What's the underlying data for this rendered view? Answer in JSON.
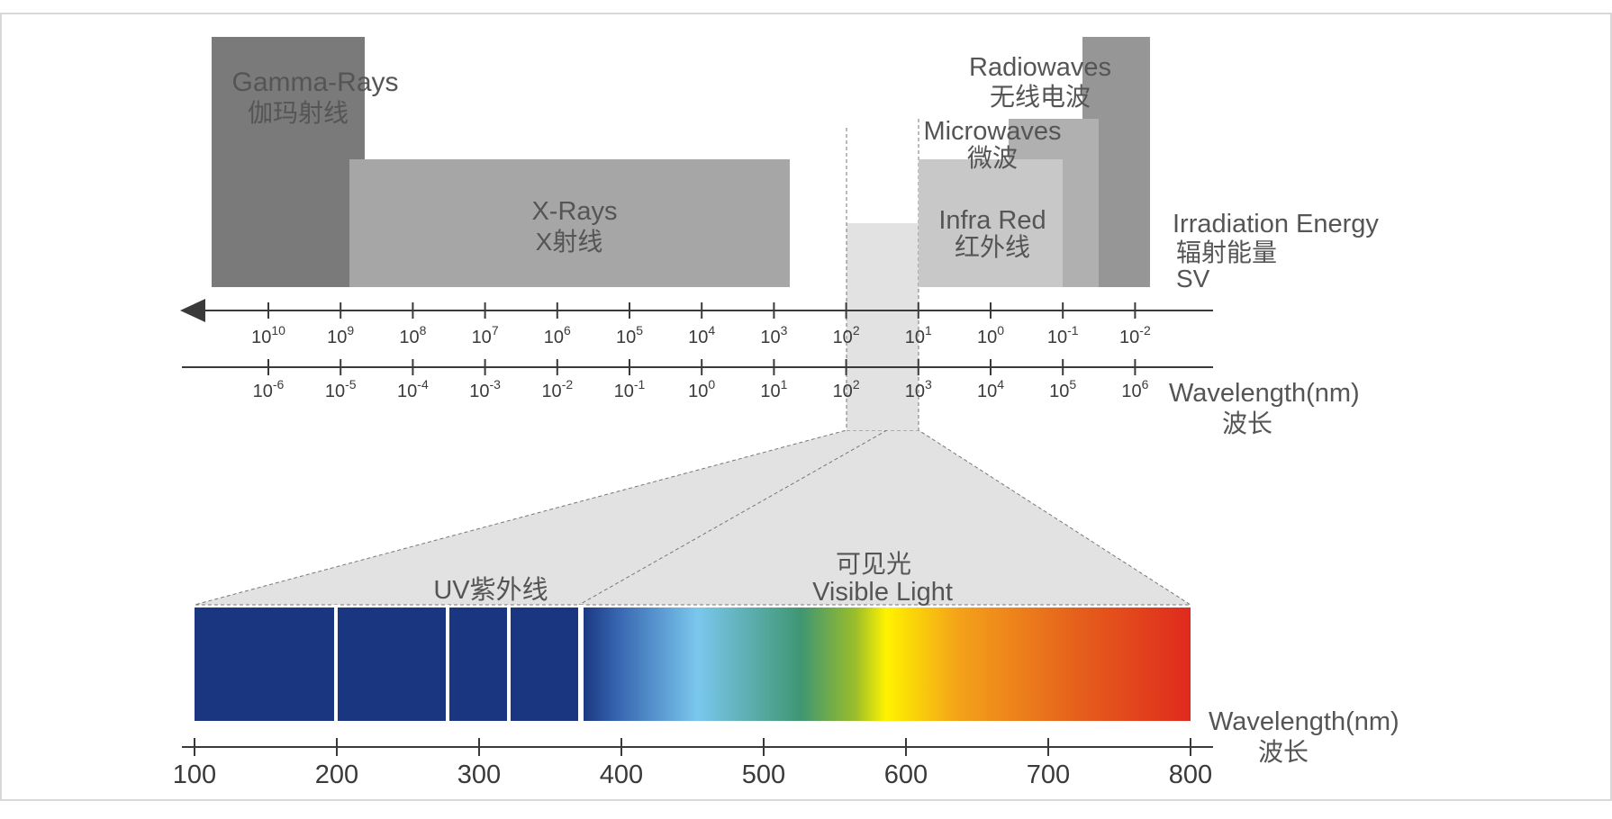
{
  "bands": {
    "gamma": {
      "en": "Gamma-Rays",
      "zh": "伽玛射线",
      "color": "#7a7a7a"
    },
    "xray": {
      "en": "X-Rays",
      "zh": "X射线",
      "color": "#a6a6a6"
    },
    "radio": {
      "en": "Radiowaves",
      "zh": "无线电波",
      "color": "#969696"
    },
    "micro": {
      "en": "Microwaves",
      "zh": "微波",
      "color": "#b0b0b0"
    },
    "infrared": {
      "en": "Infra Red",
      "zh": "红外线",
      "color": "#c8c8c8"
    },
    "optical_window_color": "#e2e2e2"
  },
  "energy_axis": {
    "label_en": "Irradiation Energy",
    "label_zh": "辐射能量",
    "unit": "SV",
    "ticks": [
      {
        "base": "10",
        "exp": "10"
      },
      {
        "base": "10",
        "exp": "9"
      },
      {
        "base": "10",
        "exp": "8"
      },
      {
        "base": "10",
        "exp": "7"
      },
      {
        "base": "10",
        "exp": "6"
      },
      {
        "base": "10",
        "exp": "5"
      },
      {
        "base": "10",
        "exp": "4"
      },
      {
        "base": "10",
        "exp": "3"
      },
      {
        "base": "10",
        "exp": "2"
      },
      {
        "base": "10",
        "exp": "1"
      },
      {
        "base": "10",
        "exp": "0"
      },
      {
        "base": "10",
        "exp": "-1"
      },
      {
        "base": "10",
        "exp": "-2"
      }
    ]
  },
  "wavelength_axis": {
    "label_en": "Wavelength(nm)",
    "label_zh": "波长",
    "ticks": [
      {
        "base": "10",
        "exp": "-6"
      },
      {
        "base": "10",
        "exp": "-5"
      },
      {
        "base": "10",
        "exp": "-4"
      },
      {
        "base": "10",
        "exp": "-3"
      },
      {
        "base": "10",
        "exp": "-2"
      },
      {
        "base": "10",
        "exp": "-1"
      },
      {
        "base": "10",
        "exp": "0"
      },
      {
        "base": "10",
        "exp": "1"
      },
      {
        "base": "10",
        "exp": "2"
      },
      {
        "base": "10",
        "exp": "3"
      },
      {
        "base": "10",
        "exp": "4"
      },
      {
        "base": "10",
        "exp": "5"
      },
      {
        "base": "10",
        "exp": "6"
      }
    ]
  },
  "zoom": {
    "uv_label": "UV紫外线",
    "visible_zh": "可见光",
    "visible_en": "Visible Light",
    "axis_label_en": "Wavelength(nm)",
    "axis_label_zh": "波长",
    "axis_ticks": [
      "100",
      "200",
      "300",
      "400",
      "500",
      "600",
      "700",
      "800"
    ],
    "uv_color": "#1a3680"
  }
}
